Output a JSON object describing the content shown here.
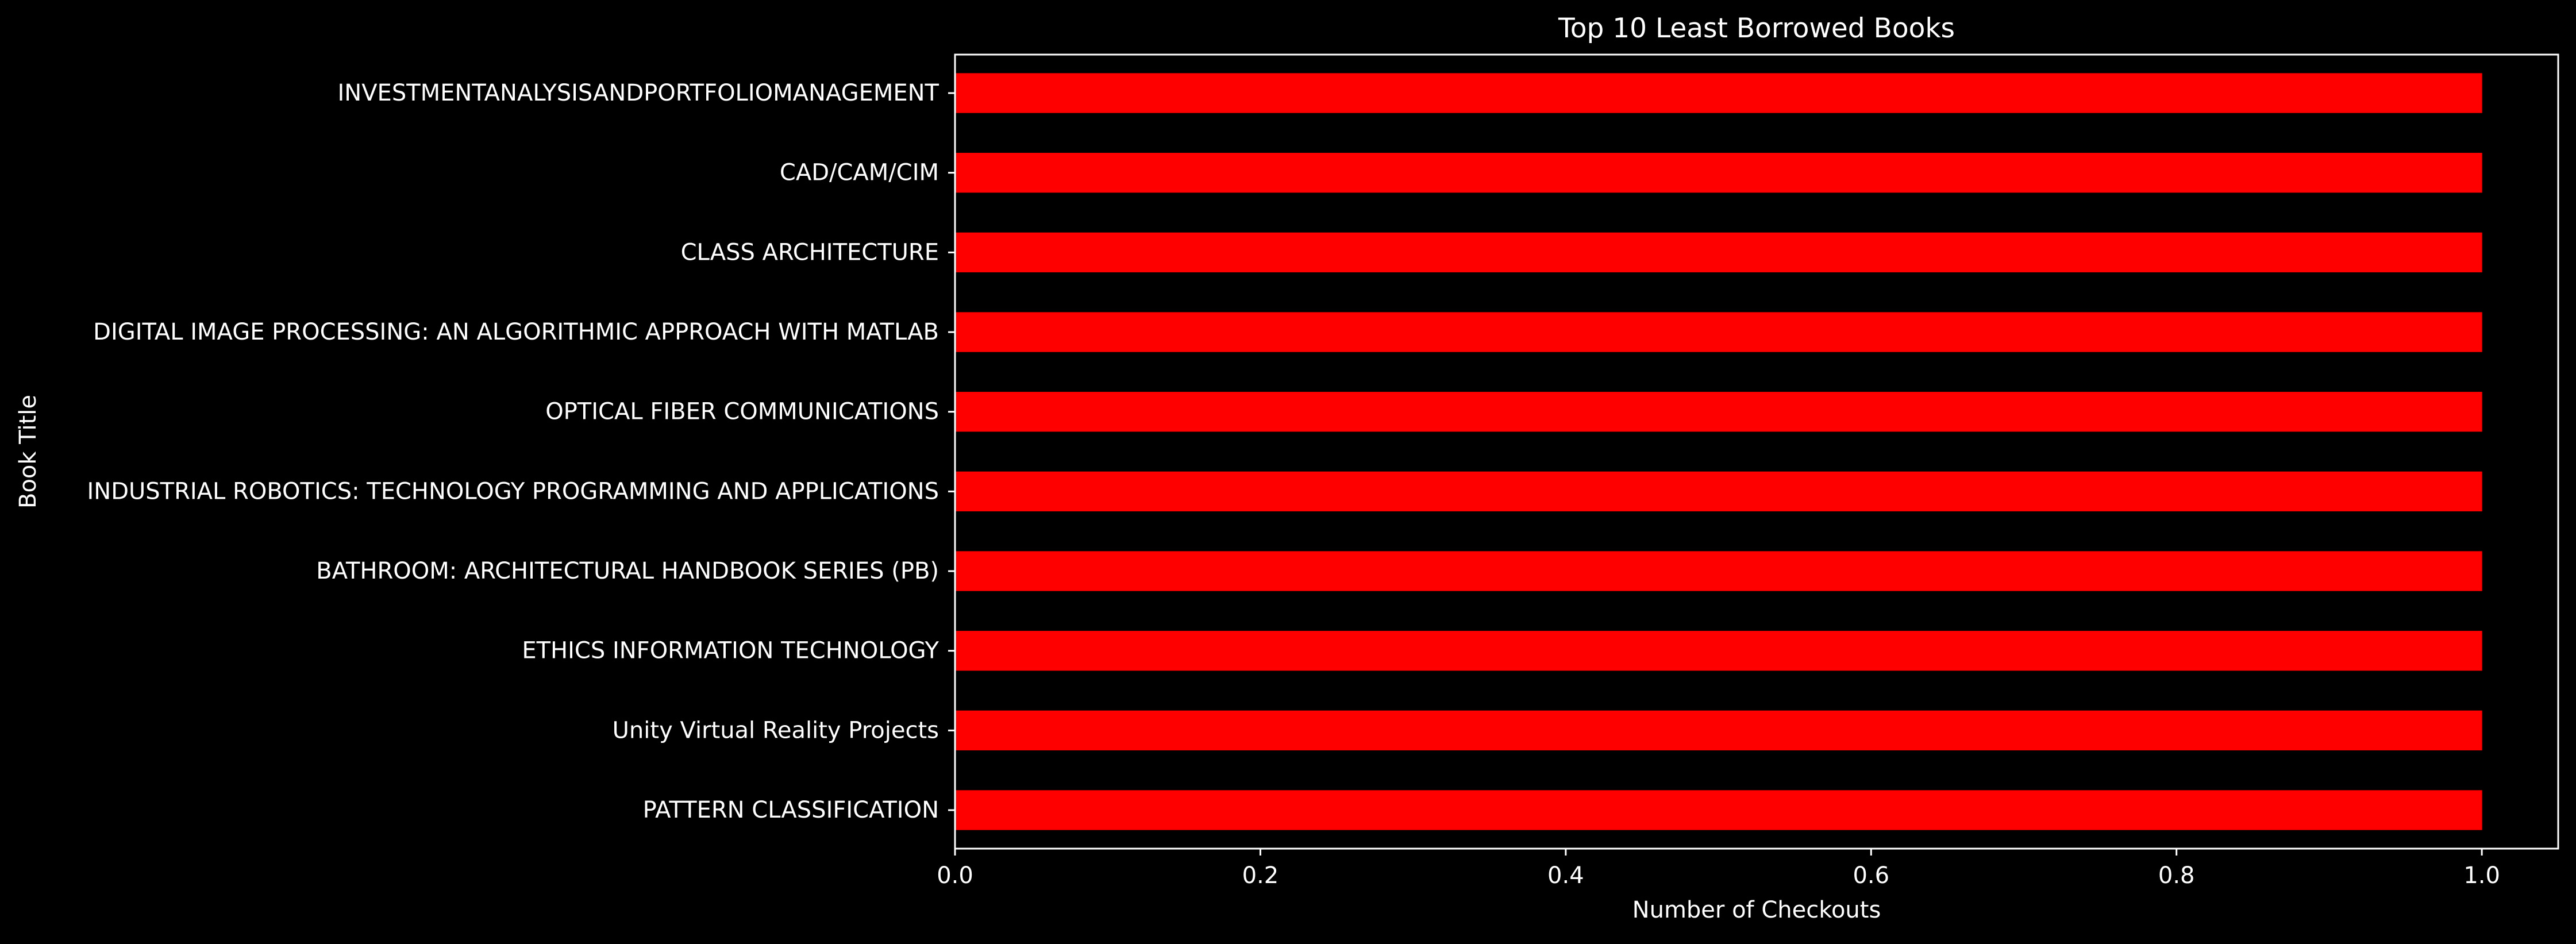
{
  "chart_data": {
    "type": "bar",
    "orientation": "horizontal",
    "title": "Top 10 Least Borrowed Books",
    "xlabel": "Number of Checkouts",
    "ylabel": "Book Title",
    "categories": [
      "INVESTMENTANALYSISANDPORTFOLIOMANAGEMENT",
      "CAD/CAM/CIM",
      "CLASS ARCHITECTURE",
      "DIGITAL IMAGE PROCESSING: AN ALGORITHMIC APPROACH WITH MATLAB",
      "OPTICAL FIBER COMMUNICATIONS",
      "INDUSTRIAL ROBOTICS: TECHNOLOGY PROGRAMMING AND APPLICATIONS",
      "BATHROOM: ARCHITECTURAL HANDBOOK SERIES (PB)",
      "ETHICS INFORMATION TECHNOLOGY",
      "Unity Virtual Reality Projects",
      "PATTERN CLASSIFICATION"
    ],
    "values": [
      1,
      1,
      1,
      1,
      1,
      1,
      1,
      1,
      1,
      1
    ],
    "xlim": [
      0,
      1.05
    ],
    "xticks": [
      0.0,
      0.2,
      0.4,
      0.6,
      0.8,
      1.0
    ],
    "xtick_labels": [
      "0.0",
      "0.2",
      "0.4",
      "0.6",
      "0.8",
      "1.0"
    ],
    "grid": false,
    "legend": "none",
    "colors": {
      "bar": "#ff0000",
      "background": "#000000",
      "text": "#ffffff",
      "axes": "#ffffff"
    }
  }
}
